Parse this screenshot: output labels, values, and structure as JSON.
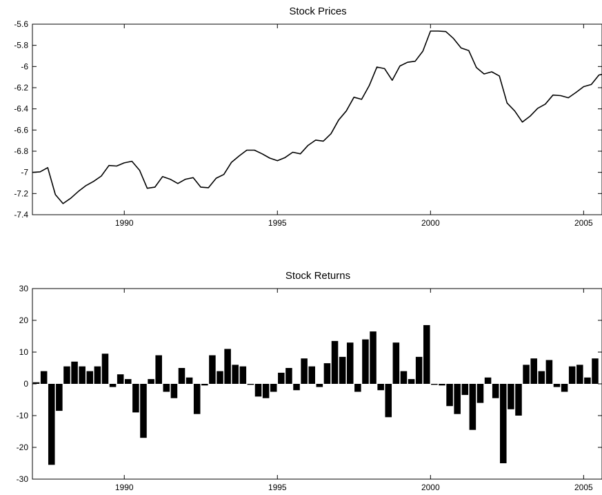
{
  "chart_data": [
    {
      "type": "line",
      "title": "Stock Prices",
      "xlabel": "",
      "ylabel": "",
      "xlim": [
        1987.0,
        2005.6
      ],
      "ylim": [
        -7.4,
        -5.6
      ],
      "x_ticks": [
        1990,
        1995,
        2000,
        2005
      ],
      "x_tick_labels": [
        "1990",
        "1995",
        "2000",
        "2005"
      ],
      "y_ticks": [
        -7.4,
        -7.2,
        -7.0,
        -6.8,
        -6.6,
        -6.4,
        -6.2,
        -6.0,
        -5.8,
        -5.6
      ],
      "y_tick_labels": [
        "-7.4",
        "-7.2",
        "-7",
        "-6.8",
        "-6.6",
        "-6.4",
        "-6.2",
        "-6",
        "-5.8",
        "-5.6"
      ],
      "grid": false,
      "series": [
        {
          "x": [
            1987.0,
            1987.25,
            1987.5,
            1987.75,
            1988.0,
            1988.25,
            1988.5,
            1988.75,
            1989.0,
            1989.25,
            1989.5,
            1989.75,
            1990.0,
            1990.25,
            1990.5,
            1990.75,
            1991.0,
            1991.25,
            1991.5,
            1991.75,
            1992.0,
            1992.25,
            1992.5,
            1992.75,
            1993.0,
            1993.25,
            1993.5,
            1993.75,
            1994.0,
            1994.25,
            1994.5,
            1994.75,
            1995.0,
            1995.25,
            1995.5,
            1995.75,
            1996.0,
            1996.25,
            1996.5,
            1996.75,
            1997.0,
            1997.25,
            1997.5,
            1997.75,
            1998.0,
            1998.25,
            1998.5,
            1998.75,
            1999.0,
            1999.25,
            1999.5,
            1999.75,
            2000.0,
            2000.25,
            2000.5,
            2000.75,
            2001.0,
            2001.25,
            2001.5,
            2001.75,
            2002.0,
            2002.25,
            2002.5,
            2002.75,
            2003.0,
            2003.25,
            2003.5,
            2003.75,
            2004.0,
            2004.25,
            2004.5,
            2004.75,
            2005.0,
            2005.25,
            2005.5,
            2005.6
          ],
          "values": [
            -7.0,
            -6.995,
            -6.955,
            -7.21,
            -7.295,
            -7.245,
            -7.18,
            -7.125,
            -7.085,
            -7.035,
            -6.935,
            -6.94,
            -6.91,
            -6.895,
            -6.98,
            -7.15,
            -7.14,
            -7.04,
            -7.065,
            -7.105,
            -7.065,
            -7.05,
            -7.14,
            -7.145,
            -7.055,
            -7.02,
            -6.905,
            -6.845,
            -6.79,
            -6.79,
            -6.825,
            -6.865,
            -6.89,
            -6.86,
            -6.81,
            -6.825,
            -6.745,
            -6.695,
            -6.705,
            -6.635,
            -6.505,
            -6.42,
            -6.29,
            -6.31,
            -6.18,
            -6.005,
            -6.02,
            -6.13,
            -5.995,
            -5.96,
            -5.95,
            -5.855,
            -5.665,
            -5.665,
            -5.67,
            -5.735,
            -5.825,
            -5.85,
            -6.01,
            -6.07,
            -6.05,
            -6.09,
            -6.345,
            -6.42,
            -6.525,
            -6.47,
            -6.395,
            -6.355,
            -6.27,
            -6.275,
            -6.295,
            -6.245,
            -6.19,
            -6.17,
            -6.08,
            -6.075
          ]
        }
      ]
    },
    {
      "type": "bar",
      "title": "Stock Returns",
      "xlabel": "",
      "ylabel": "",
      "xlim": [
        1987.0,
        2005.6
      ],
      "ylim": [
        -30,
        30
      ],
      "x_ticks": [
        1990,
        1995,
        2000,
        2005
      ],
      "x_tick_labels": [
        "1990",
        "1995",
        "2000",
        "2005"
      ],
      "y_ticks": [
        -30,
        -20,
        -10,
        0,
        10,
        20,
        30
      ],
      "y_tick_labels": [
        "-30",
        "-20",
        "-10",
        "0",
        "10",
        "20",
        "30"
      ],
      "grid": false,
      "series": [
        {
          "x": [
            1987.125,
            1987.375,
            1987.625,
            1987.875,
            1988.125,
            1988.375,
            1988.625,
            1988.875,
            1989.125,
            1989.375,
            1989.625,
            1989.875,
            1990.125,
            1990.375,
            1990.625,
            1990.875,
            1991.125,
            1991.375,
            1991.625,
            1991.875,
            1992.125,
            1992.375,
            1992.625,
            1992.875,
            1993.125,
            1993.375,
            1993.625,
            1993.875,
            1994.125,
            1994.375,
            1994.625,
            1994.875,
            1995.125,
            1995.375,
            1995.625,
            1995.875,
            1996.125,
            1996.375,
            1996.625,
            1996.875,
            1997.125,
            1997.375,
            1997.625,
            1997.875,
            1998.125,
            1998.375,
            1998.625,
            1998.875,
            1999.125,
            1999.375,
            1999.625,
            1999.875,
            2000.125,
            2000.375,
            2000.625,
            2000.875,
            2001.125,
            2001.375,
            2001.625,
            2001.875,
            2002.125,
            2002.375,
            2002.625,
            2002.875,
            2003.125,
            2003.375,
            2003.625,
            2003.875,
            2004.125,
            2004.375,
            2004.625,
            2004.875,
            2005.125,
            2005.375
          ],
          "values": [
            0.5,
            4.0,
            -25.5,
            -8.5,
            5.5,
            7.0,
            5.5,
            4.0,
            5.5,
            9.5,
            -1.0,
            3.0,
            1.5,
            -9.0,
            -17.0,
            1.5,
            9.0,
            -2.5,
            -4.5,
            5.0,
            2.0,
            -9.5,
            -0.5,
            9.0,
            4.0,
            11.0,
            6.0,
            5.5,
            -0.3,
            -4.0,
            -4.5,
            -2.5,
            3.5,
            5.0,
            -2.0,
            8.0,
            5.5,
            -1.0,
            6.5,
            13.5,
            8.5,
            13.0,
            -2.5,
            14.0,
            16.5,
            -2.0,
            -10.5,
            13.0,
            4.0,
            1.5,
            8.5,
            18.5,
            -0.3,
            -0.5,
            -7.0,
            -9.5,
            -3.5,
            -14.5,
            -6.0,
            2.0,
            -4.5,
            -25.0,
            -8.0,
            -10.0,
            6.0,
            8.0,
            4.0,
            7.5,
            -1.0,
            -2.5,
            5.5,
            6.0,
            2.0,
            8.0
          ]
        }
      ]
    }
  ]
}
